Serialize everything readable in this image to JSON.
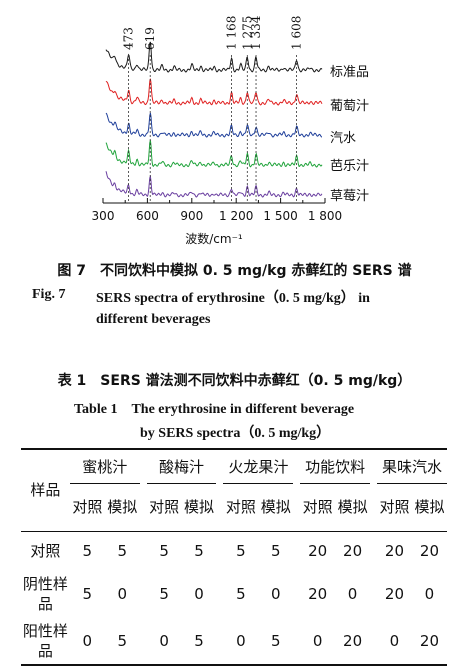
{
  "chart_data": {
    "type": "line",
    "xlabel": "波数/cm⁻¹",
    "xticks": [
      "300",
      "600",
      "900",
      "1 200",
      "1 500",
      "1 800"
    ],
    "xtick_values": [
      300,
      600,
      900,
      1200,
      1500,
      1800
    ],
    "xlim": [
      300,
      1800
    ],
    "peak_labels": [
      {
        "text": "473",
        "x": 473
      },
      {
        "text": "619",
        "x": 619
      },
      {
        "text": "1 168",
        "x": 1168
      },
      {
        "text": "1 275",
        "x": 1275
      },
      {
        "text": "1 334",
        "x": 1334
      },
      {
        "text": "1 608",
        "x": 1608
      }
    ],
    "peaks_cm": [
      473,
      619,
      1168,
      1275,
      1334,
      1608
    ],
    "series": [
      {
        "name": "标准品",
        "color": "#1a1a1a"
      },
      {
        "name": "葡萄汁",
        "color": "#e02020"
      },
      {
        "name": "汽水",
        "color": "#1f3f9a"
      },
      {
        "name": "芭乐汁",
        "color": "#1fa33a"
      },
      {
        "name": "草莓汁",
        "color": "#6a3fa0"
      }
    ]
  },
  "figure": {
    "caption_cn": "图 7　不同饮料中模拟 0. 5 mg/kg 赤藓红的 SERS 谱",
    "caption_en_label": "Fig. 7",
    "caption_en_line1": "SERS spectra of erythrosine（0. 5 mg/kg） in",
    "caption_en_line2": "different beverages"
  },
  "table": {
    "title_cn": "表 1　SERS 谱法测不同饮料中赤藓红（0. 5 mg/kg）",
    "title_en_line1": "Table 1　The erythrosine in different beverage",
    "title_en_line2": "by SERS spectra（0. 5 mg/kg）",
    "row_header": "样品",
    "groups": [
      "蜜桃汁",
      "酸梅汁",
      "火龙果汁",
      "功能饮料",
      "果味汽水"
    ],
    "sub_headers": [
      "对照",
      "模拟"
    ],
    "rows": [
      {
        "label": "对照",
        "values": [
          "5",
          "5",
          "5",
          "5",
          "5",
          "5",
          "20",
          "20",
          "20",
          "20"
        ]
      },
      {
        "label": "阴性样品",
        "values": [
          "5",
          "0",
          "5",
          "0",
          "5",
          "0",
          "20",
          "0",
          "20",
          "0"
        ]
      },
      {
        "label": "阳性样品",
        "values": [
          "0",
          "5",
          "0",
          "5",
          "0",
          "5",
          "0",
          "20",
          "0",
          "20"
        ]
      }
    ]
  }
}
